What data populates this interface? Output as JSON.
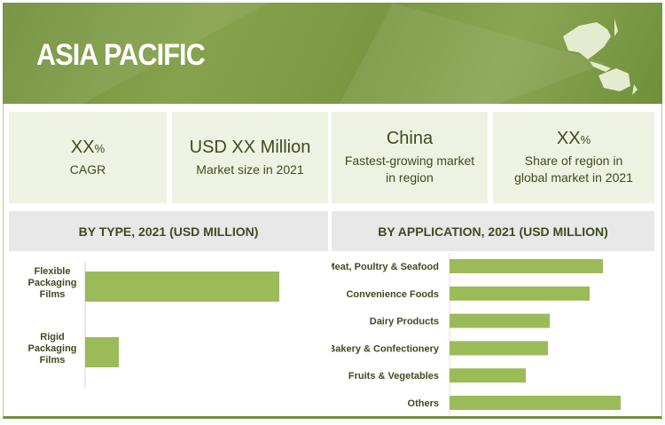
{
  "header": {
    "title": "ASIA PACIFIC",
    "map_icon": "asia-pacific-map"
  },
  "stats": [
    {
      "value": "XX",
      "unit": "%",
      "label": "CAGR"
    },
    {
      "value": "USD XX Million",
      "unit": "",
      "label": "Market size in 2021"
    },
    {
      "value": "China",
      "unit": "",
      "label": "Fastest-growing market in region"
    },
    {
      "value": "XX",
      "unit": "%",
      "label": "Share of region in global market in 2021"
    }
  ],
  "colors": {
    "banner": "#7a9842",
    "bar": "#9bbb59",
    "panel": "#eef2e2"
  },
  "chart_data": [
    {
      "type": "bar",
      "orientation": "horizontal",
      "title": "BY TYPE, 2021 (USD MILLION)",
      "categories": [
        "Flexible Packaging Films",
        "Rigid Packaging Films"
      ],
      "values": [
        219,
        38
      ],
      "note_units": "relative (no values printed)"
    },
    {
      "type": "bar",
      "orientation": "horizontal",
      "title": "BY APPLICATION, 2021 (USD MILLION)",
      "categories": [
        "Meat, Poultry & Seafood",
        "Convenience Foods",
        "Dairy Products",
        "Bakery & Confectionery",
        "Fruits & Vegetables",
        "Others"
      ],
      "values": [
        173,
        158,
        113,
        111,
        86,
        193
      ],
      "note_units": "relative (no values printed)"
    }
  ]
}
